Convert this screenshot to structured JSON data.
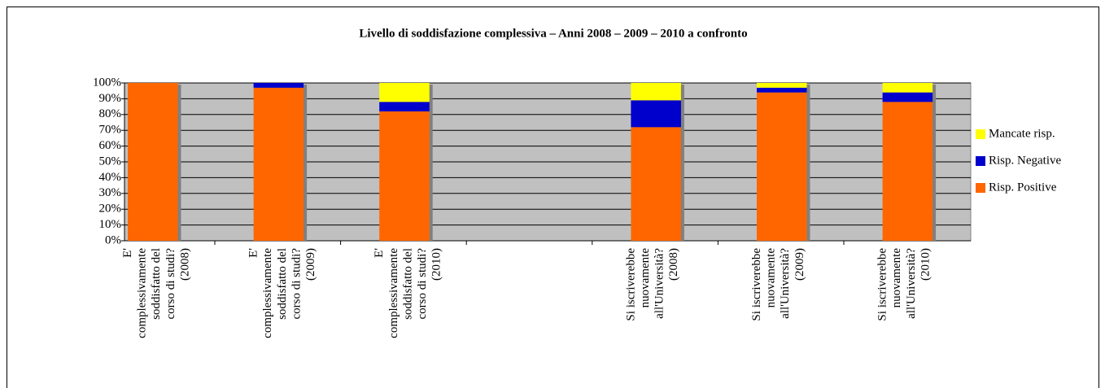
{
  "chart_data": {
    "type": "stacked_bar",
    "title": "Livello di soddisfazione complessiva – Anni 2008 – 2009 – 2010 a confronto",
    "categories": [
      "E' complessivamente soddisfatto del corso di studi? (2008)",
      "E' complessivamente soddisfatto del corso di studi? (2009)",
      "E' complessivamente soddisfatto del corso di studi? (2010)",
      null,
      "Si iscriverebbe nuovamente all'Università? (2008)",
      "Si iscriverebbe nuovamente all'Università? (2009)",
      "Si iscriverebbe nuovamente all'Università? (2010)"
    ],
    "series": [
      {
        "name": "Risp. Positive",
        "color": "#ff6600",
        "values": [
          100,
          97,
          82,
          null,
          72,
          94,
          88
        ]
      },
      {
        "name": "Risp. Negative",
        "color": "#0000cc",
        "values": [
          0,
          3,
          6,
          null,
          17,
          3,
          6
        ]
      },
      {
        "name": "Mancate risp.",
        "color": "#ffff00",
        "values": [
          0,
          0,
          12,
          null,
          11,
          3,
          6
        ]
      }
    ],
    "ylim": [
      0,
      100
    ],
    "yticks": [
      {
        "value": 0,
        "label": "0%"
      },
      {
        "value": 10,
        "label": "10%"
      },
      {
        "value": 20,
        "label": "20%"
      },
      {
        "value": 30,
        "label": "30%"
      },
      {
        "value": 40,
        "label": "40%"
      },
      {
        "value": 50,
        "label": "50%"
      },
      {
        "value": 60,
        "label": "60%"
      },
      {
        "value": 70,
        "label": "70%"
      },
      {
        "value": 80,
        "label": "80%"
      },
      {
        "value": 90,
        "label": "90%"
      },
      {
        "value": 100,
        "label": "100%"
      }
    ],
    "grid": true,
    "legend": "right"
  }
}
